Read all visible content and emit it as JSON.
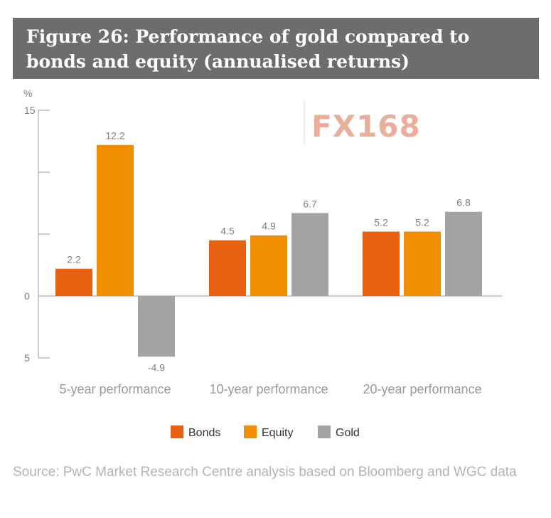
{
  "title": "Figure 26: Performance of gold compared to bonds and equity (annualised returns)",
  "watermark": "FX168",
  "source": "Source: PwC Market Research Centre analysis based on Bloomberg and WGC data",
  "chart_data": {
    "type": "bar",
    "title": "Figure 26: Performance of gold compared to bonds and equity (annualised returns)",
    "ylabel": "%",
    "ylim": [
      -5,
      15
    ],
    "yticks": [
      {
        "value": 15,
        "label": "15"
      },
      {
        "value": 10,
        "label": ""
      },
      {
        "value": 5,
        "label": ""
      },
      {
        "value": 0,
        "label": "0"
      },
      {
        "value": -5,
        "label": "5"
      }
    ],
    "categories": [
      "5-year performance",
      "10-year performance",
      "20-year performance"
    ],
    "series": [
      {
        "name": "Bonds",
        "color": "#e8610e",
        "values": [
          2.2,
          4.5,
          5.2
        ],
        "labels": [
          "2.2",
          "4.5",
          "5.2"
        ]
      },
      {
        "name": "Equity",
        "color": "#f08d00",
        "values": [
          12.2,
          4.9,
          5.2
        ],
        "labels": [
          "12.2",
          "4.9",
          "5.2"
        ]
      },
      {
        "name": "Gold",
        "color": "#a3a3a3",
        "values": [
          -4.9,
          6.7,
          6.8
        ],
        "labels": [
          "-4.9",
          "6.7",
          "6.8"
        ]
      }
    ],
    "legend": "bottom-center",
    "grid": false
  }
}
